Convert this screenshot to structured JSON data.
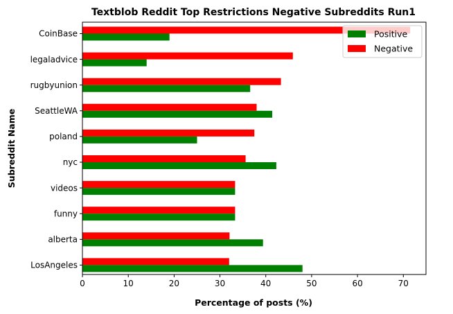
{
  "chart_data": {
    "type": "bar",
    "orientation": "horizontal",
    "title": "Textblob Reddit Top Restrictions Negative Subreddits Run1",
    "xlabel": "Percentage of posts (%)",
    "ylabel": "Subreddit Name",
    "xlim": [
      0,
      75
    ],
    "xticks": [
      0,
      10,
      20,
      30,
      40,
      50,
      60,
      70
    ],
    "grid": false,
    "legend_position": "top-right",
    "categories": [
      "CoinBase",
      "legaladvice",
      "rugbyunion",
      "SeattleWA",
      "poland",
      "nyc",
      "videos",
      "funny",
      "alberta",
      "LosAngeles"
    ],
    "series": [
      {
        "name": "Positive",
        "color": "#008000",
        "values": [
          19.0,
          14.0,
          36.6,
          41.4,
          25.0,
          42.3,
          33.3,
          33.3,
          39.4,
          48.0
        ]
      },
      {
        "name": "Negative",
        "color": "#ff0000",
        "values": [
          71.5,
          45.9,
          43.3,
          38.0,
          37.5,
          35.6,
          33.3,
          33.3,
          32.1,
          32.0
        ]
      }
    ]
  }
}
